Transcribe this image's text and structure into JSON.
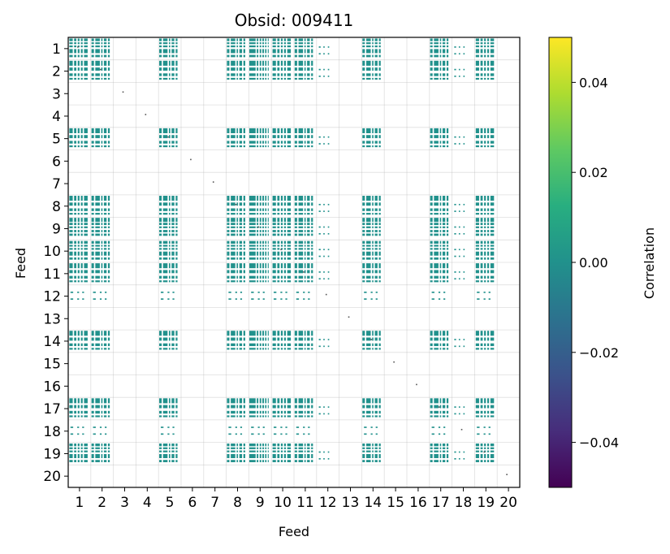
{
  "chart_data": {
    "type": "heatmap",
    "title": "Obsid: 009411",
    "xlabel": "Feed",
    "ylabel": "Feed",
    "x_ticks": [
      "1",
      "2",
      "3",
      "4",
      "5",
      "6",
      "7",
      "8",
      "9",
      "10",
      "11",
      "12",
      "13",
      "14",
      "15",
      "16",
      "17",
      "18",
      "19",
      "20"
    ],
    "y_ticks": [
      "1",
      "2",
      "3",
      "4",
      "5",
      "6",
      "7",
      "8",
      "9",
      "10",
      "11",
      "12",
      "13",
      "14",
      "15",
      "16",
      "17",
      "18",
      "19",
      "20"
    ],
    "colorbar": {
      "label": "Correlation",
      "range": [
        -0.05,
        0.05
      ],
      "ticks": [
        0.04,
        0.02,
        0.0,
        -0.02,
        -0.04
      ],
      "tick_labels": [
        "0.04",
        "0.02",
        "0.00",
        "−0.02",
        "−0.04"
      ],
      "colormap": "viridis"
    },
    "grid": true,
    "nan_color": "#ffffff",
    "cell_value": 0.0,
    "cell_color": "#21918c",
    "active_feeds": [
      1,
      2,
      5,
      8,
      9,
      10,
      11,
      14,
      17,
      19
    ],
    "partial_feeds": [
      12,
      18
    ],
    "empty_feeds": [
      3,
      4,
      6,
      7,
      13,
      15,
      16,
      20
    ]
  }
}
